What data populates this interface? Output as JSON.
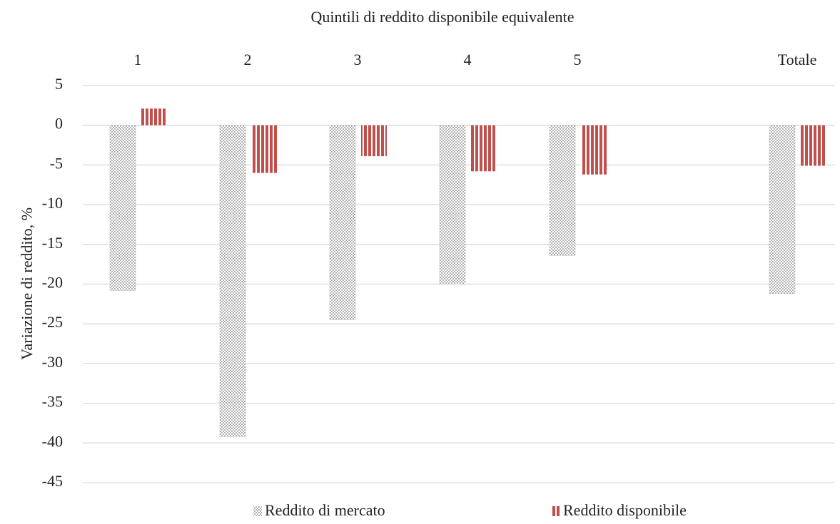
{
  "chart_data": {
    "type": "bar",
    "title": "Quintili di reddito disponibile  equivalente",
    "y_label": "Variazione di reddito, %",
    "categories": [
      "1",
      "2",
      "3",
      "4",
      "5",
      null,
      "Totale"
    ],
    "series": [
      {
        "name": "Reddito di mercato",
        "color": "#7f7f7f",
        "pattern": "dots",
        "values": [
          -20.8,
          -39.2,
          -24.5,
          -20.0,
          -16.4,
          null,
          -21.2
        ]
      },
      {
        "name": "Reddito disponibile",
        "color": "#c0504d",
        "pattern": "stripes",
        "values": [
          2.1,
          -6.0,
          -3.9,
          -5.8,
          -6.2,
          null,
          -5.1
        ]
      }
    ],
    "ylim": [
      -45,
      5
    ],
    "yticks": [
      -45,
      -40,
      -35,
      -30,
      -25,
      -20,
      -15,
      -10,
      -5,
      0,
      5
    ],
    "grid": true,
    "legend": "bottom"
  }
}
